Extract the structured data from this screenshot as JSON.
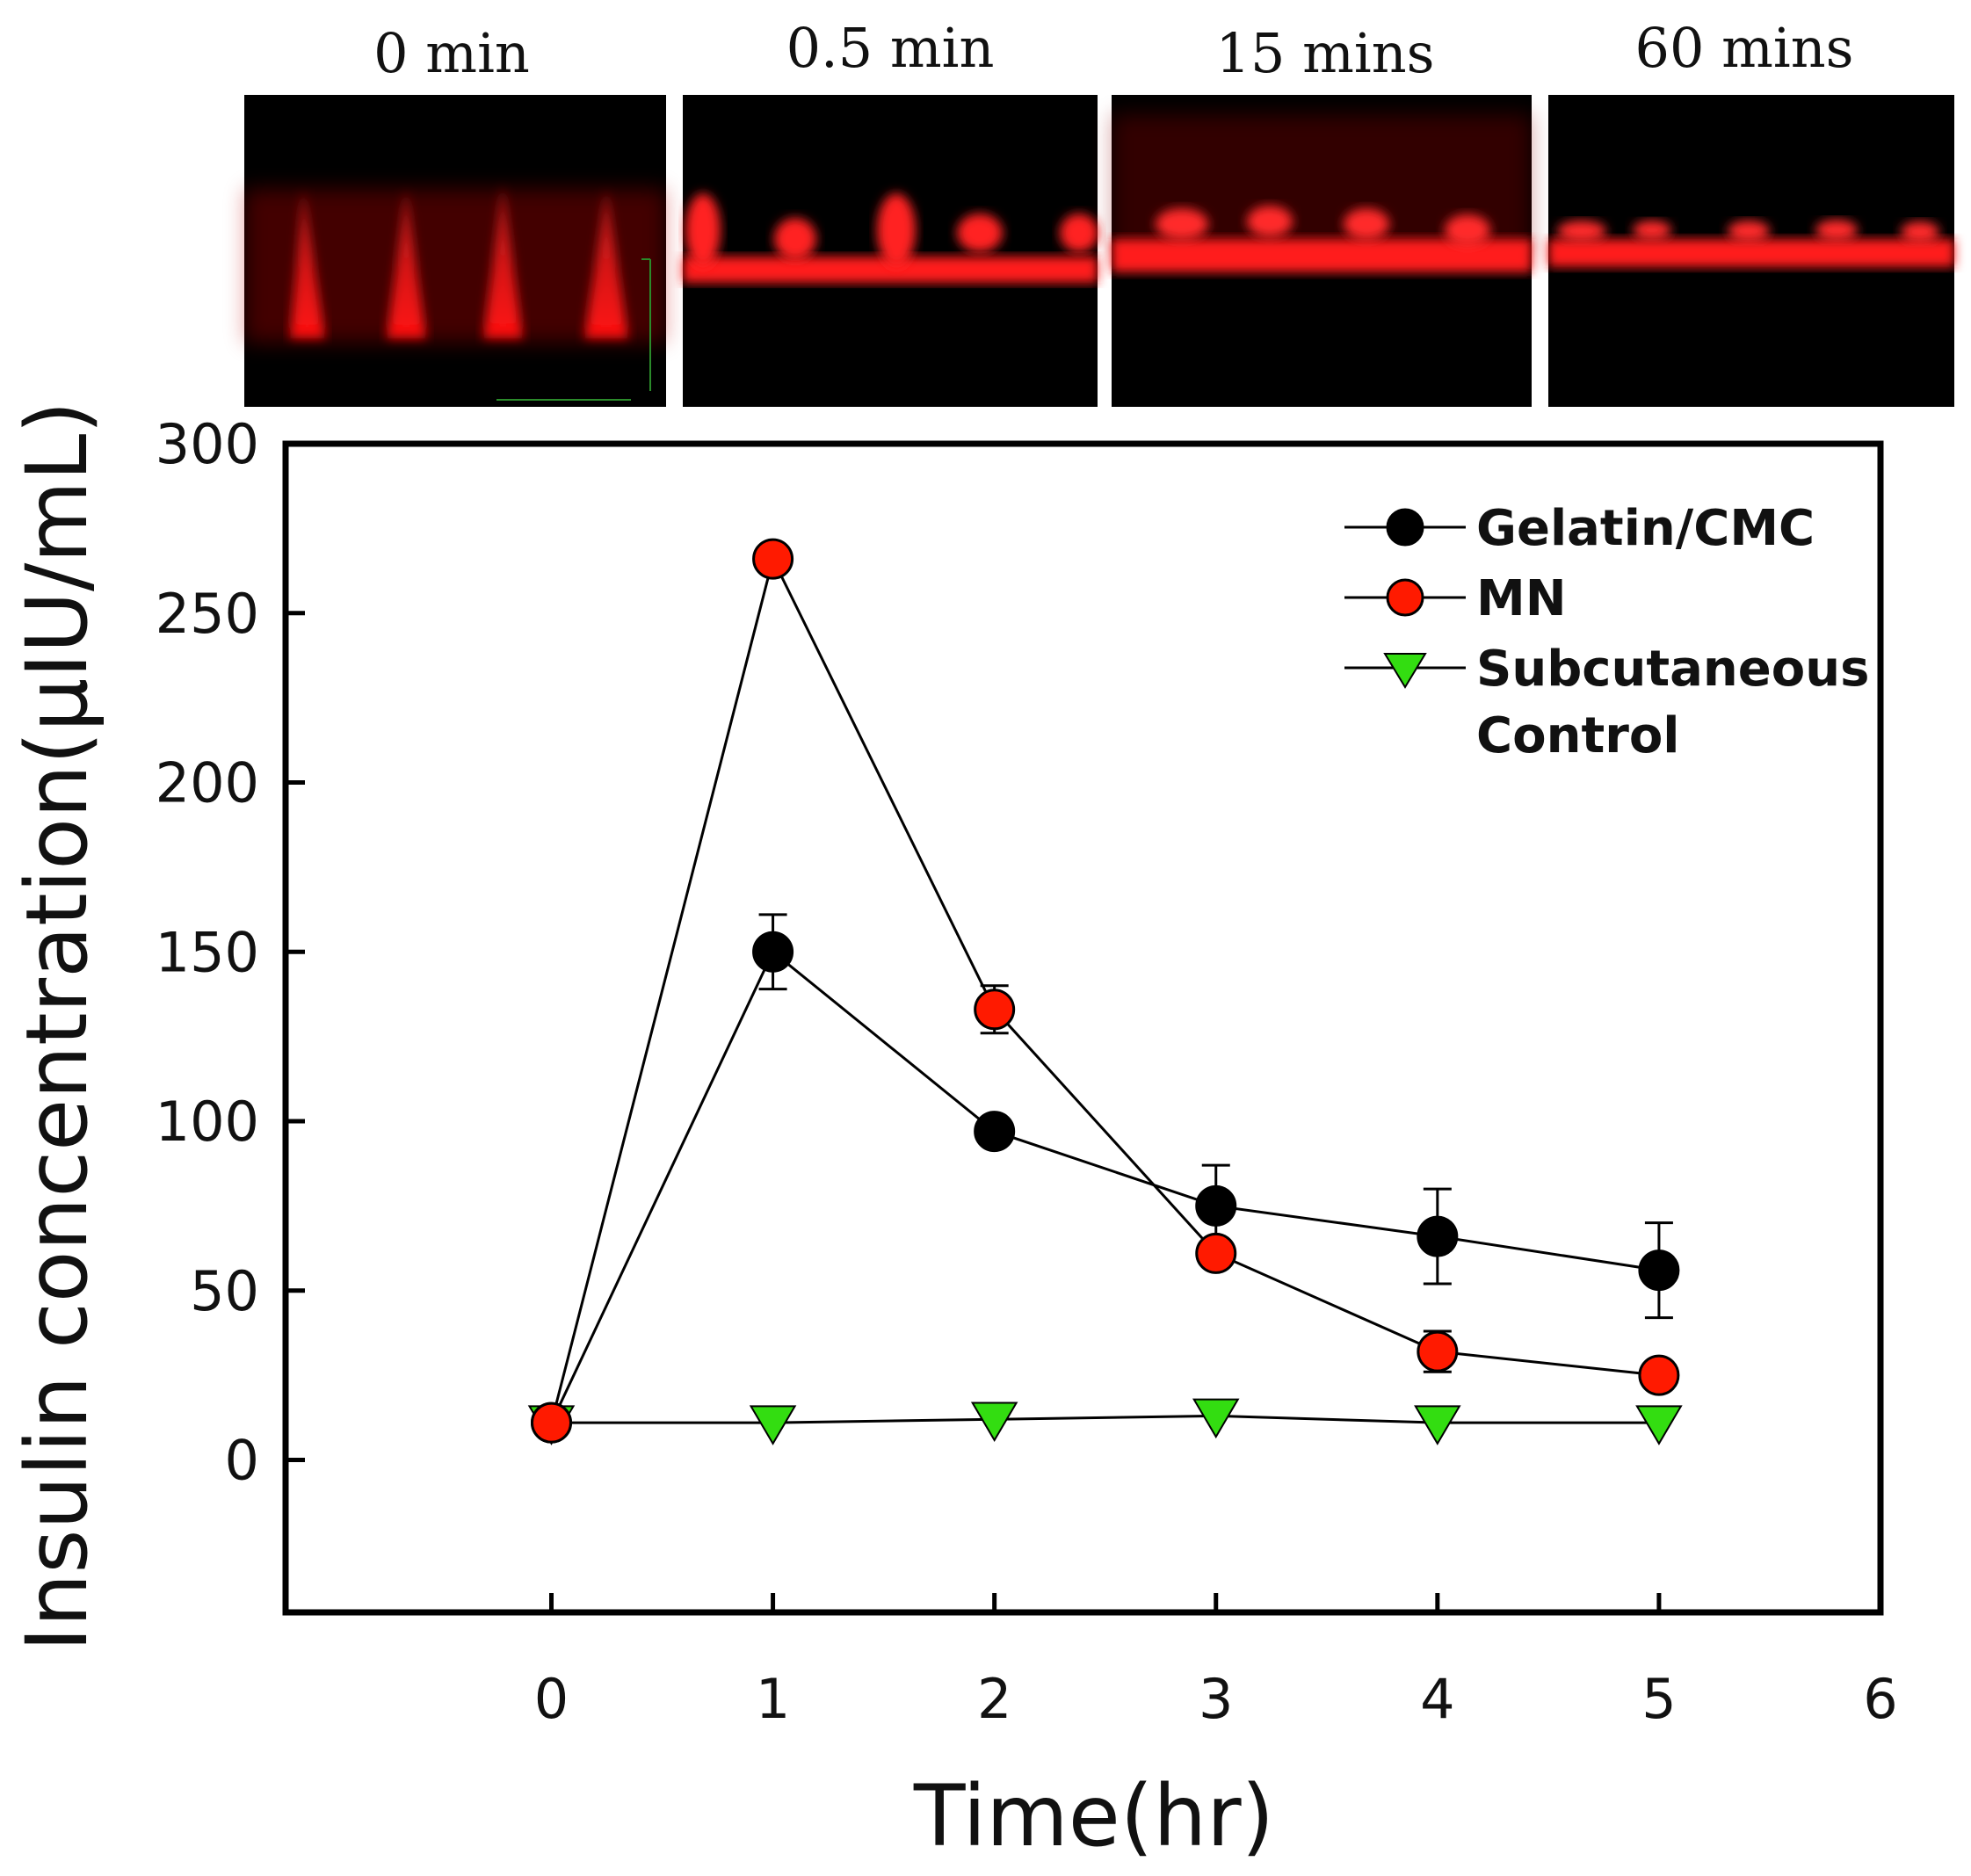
{
  "panels": {
    "labels": [
      "0 min",
      "0.5 min",
      "15 mins",
      "60 mins"
    ]
  },
  "colors": {
    "gelatin": "#000000",
    "mn": "#ff1a00",
    "control": "#33dd11",
    "fluorescence": "#ff1a1a"
  },
  "chart_data": {
    "type": "line",
    "xlabel": "Time(hr)",
    "ylabel": "Insulin concentration(µIU/mL)",
    "xlim": [
      -1.2,
      6
    ],
    "ylim": [
      -45,
      300
    ],
    "xticks": [
      0,
      1,
      2,
      3,
      4,
      5,
      6
    ],
    "yticks": [
      0,
      50,
      100,
      150,
      200,
      250,
      300
    ],
    "legend_position": "top-right",
    "x": [
      0,
      1,
      2,
      3,
      4,
      5
    ],
    "series": [
      {
        "name": "Gelatin/CMC",
        "marker": "circle",
        "color": "#000000",
        "values": [
          11,
          150,
          97,
          75,
          66,
          56
        ],
        "errors": [
          2,
          11,
          4,
          12,
          14,
          14
        ]
      },
      {
        "name": "MN",
        "marker": "circle",
        "color": "#ff1a00",
        "values": [
          11,
          266,
          133,
          61,
          32,
          25
        ],
        "errors": [
          2,
          3,
          7,
          4,
          6,
          3
        ]
      },
      {
        "name": "Subcutaneous Control",
        "marker": "triangle-down",
        "color": "#33dd11",
        "values": [
          11,
          11,
          12,
          13,
          11,
          11
        ],
        "errors": [
          0,
          0,
          0,
          0,
          0,
          0
        ]
      }
    ]
  },
  "legend": {
    "lines": [
      "Gelatin/CMC",
      "MN",
      "Subcutaneous",
      "Control"
    ]
  }
}
